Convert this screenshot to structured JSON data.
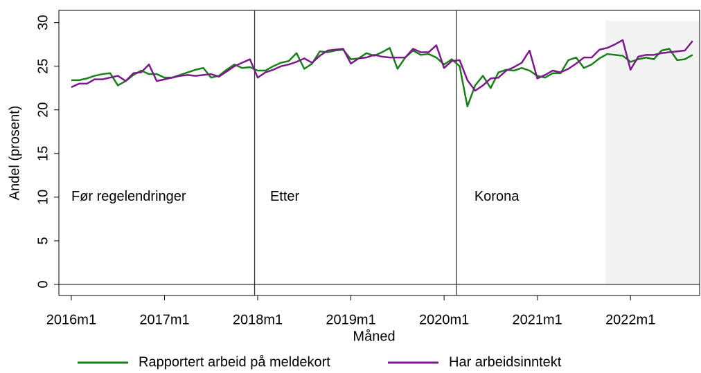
{
  "chart_data": {
    "type": "line",
    "xlabel": "Måned",
    "ylabel": "Andel (prosent)",
    "x": [
      672,
      673,
      674,
      675,
      676,
      677,
      678,
      679,
      680,
      681,
      682,
      683,
      684,
      685,
      686,
      687,
      688,
      689,
      690,
      691,
      692,
      693,
      694,
      695,
      696,
      697,
      698,
      699,
      700,
      701,
      702,
      703,
      704,
      705,
      706,
      707,
      708,
      709,
      710,
      711,
      712,
      713,
      714,
      715,
      716,
      717,
      718,
      719,
      720,
      721,
      722,
      723,
      724,
      725,
      726,
      727,
      728,
      729,
      730,
      731,
      732,
      733,
      734,
      735,
      736,
      737,
      738,
      739,
      740,
      741,
      742,
      743,
      744,
      745,
      746,
      747,
      748,
      749,
      750,
      751,
      752
    ],
    "series": [
      {
        "name": "Rapportert arbeid på meldekort",
        "color": "#1a7f1a",
        "values": [
          23.4,
          23.4,
          23.6,
          23.9,
          24.1,
          24.2,
          22.8,
          23.3,
          24.0,
          24.5,
          24.1,
          24.1,
          23.7,
          23.7,
          24.0,
          24.3,
          24.6,
          24.8,
          23.7,
          23.9,
          24.6,
          25.2,
          24.8,
          24.9,
          24.5,
          24.5,
          25.0,
          25.4,
          25.6,
          26.5,
          24.7,
          25.3,
          26.7,
          26.6,
          26.8,
          26.9,
          25.8,
          25.9,
          26.5,
          26.2,
          26.6,
          27.1,
          24.7,
          26.0,
          26.8,
          26.3,
          26.4,
          26.0,
          25.2,
          25.8,
          25.0,
          20.4,
          22.8,
          23.9,
          22.5,
          24.3,
          24.6,
          24.5,
          24.8,
          24.5,
          23.9,
          23.7,
          24.2,
          24.2,
          25.7,
          26.0,
          24.8,
          25.2,
          25.9,
          26.4,
          26.3,
          26.2,
          25.5,
          25.8,
          26.0,
          25.8,
          26.8,
          27.0,
          25.7,
          25.8,
          26.3
        ]
      },
      {
        "name": "Har arbeidsinntekt",
        "color": "#7a1a8a",
        "values": [
          22.6,
          23.0,
          23.0,
          23.5,
          23.5,
          23.7,
          23.9,
          23.3,
          24.2,
          24.3,
          25.2,
          23.3,
          23.5,
          23.7,
          23.9,
          24.0,
          23.9,
          24.0,
          24.1,
          23.8,
          24.4,
          25.0,
          25.4,
          25.8,
          23.7,
          24.3,
          24.6,
          25.0,
          25.2,
          25.5,
          25.9,
          25.4,
          26.2,
          26.8,
          26.9,
          27.0,
          25.3,
          25.9,
          26.0,
          26.3,
          26.1,
          26.0,
          26.0,
          26.0,
          27.0,
          26.6,
          26.6,
          27.4,
          24.8,
          25.6,
          25.7,
          23.4,
          22.2,
          22.8,
          23.6,
          23.7,
          24.5,
          24.9,
          25.4,
          26.8,
          23.6,
          24.0,
          24.5,
          24.3,
          24.7,
          25.3,
          26.0,
          26.0,
          26.9,
          27.1,
          27.5,
          28.0,
          24.6,
          26.1,
          26.3,
          26.3,
          26.5,
          26.6,
          26.7,
          26.8,
          27.9
        ]
      }
    ],
    "xlim": [
      670.4,
      752.9
    ],
    "ylim": [
      -1.27,
      31.4
    ],
    "xticks": [
      {
        "value": 672,
        "label": "2016m1"
      },
      {
        "value": 684,
        "label": "2017m1"
      },
      {
        "value": 696,
        "label": "2018m1"
      },
      {
        "value": 708,
        "label": "2019m1"
      },
      {
        "value": 720,
        "label": "2020m1"
      },
      {
        "value": 732,
        "label": "2021m1"
      },
      {
        "value": 744,
        "label": "2022m1"
      }
    ],
    "yticks": [
      0,
      5,
      10,
      15,
      20,
      25,
      30
    ],
    "xlines": [
      695.6,
      721.6
    ],
    "hline": 0,
    "shade": [
      740.8,
      752.8
    ],
    "annotations": [
      {
        "text": "Før regelendringer",
        "x": 672,
        "y": 10
      },
      {
        "text": "Etter",
        "x": 697.6,
        "y": 10
      },
      {
        "text": "Korona",
        "x": 723.9,
        "y": 10
      }
    ],
    "legend": "bottom"
  }
}
